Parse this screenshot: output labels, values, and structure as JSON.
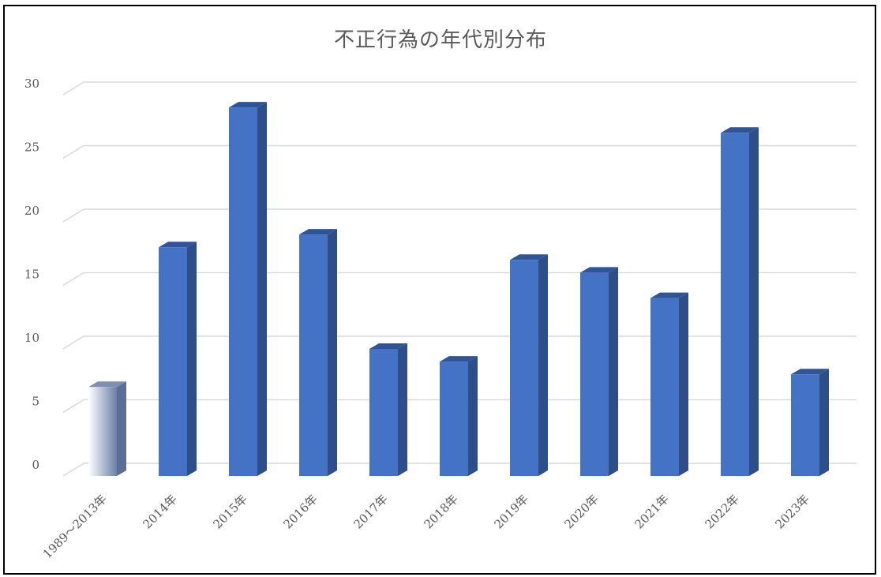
{
  "chart_data": {
    "type": "bar",
    "title": "不正行為の年代別分布",
    "categories": [
      "1989～2013年",
      "2014年",
      "2015年",
      "2016年",
      "2017年",
      "2018年",
      "2019年",
      "2020年",
      "2021年",
      "2022年",
      "2023年"
    ],
    "values": [
      7,
      18,
      29,
      19,
      10,
      9,
      17,
      16,
      14,
      27,
      8
    ],
    "ylim": [
      0,
      30
    ],
    "yticks": [
      0,
      5,
      10,
      15,
      20,
      25,
      30
    ],
    "xlabel": "",
    "ylabel": "",
    "grid": true,
    "legend": false,
    "colors": {
      "bar_front": "#4472C4",
      "bar_side": "#2E4E8A",
      "bar_top": "#2F5597",
      "first_bar_gradient_start": "#FFFFFF",
      "first_bar_gradient_end": "#6B7FA8",
      "gridline": "#D9D9D9",
      "text": "#595959"
    }
  }
}
